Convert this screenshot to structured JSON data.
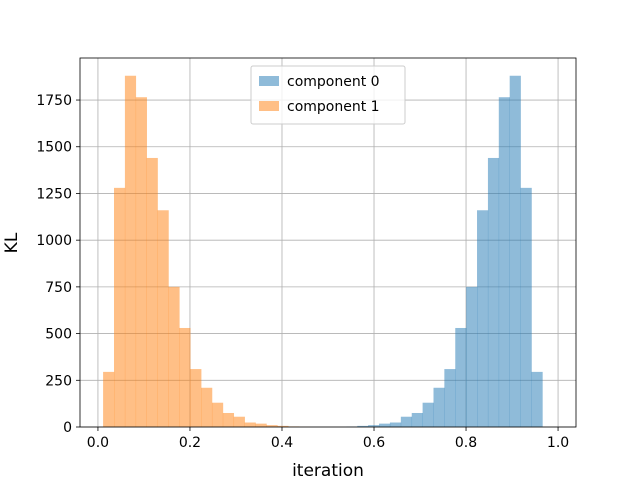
{
  "chart_data": {
    "type": "histogram",
    "xlabel": "iteration",
    "ylabel": "KL",
    "xlim": [
      -0.039,
      1.039
    ],
    "ylim": [
      0,
      1975
    ],
    "xticks": [
      0.0,
      0.2,
      0.4,
      0.6,
      0.8,
      1.0
    ],
    "xtick_labels": [
      "0.0",
      "0.2",
      "0.4",
      "0.6",
      "0.8",
      "1.0"
    ],
    "yticks": [
      0,
      250,
      500,
      750,
      1000,
      1250,
      1500,
      1750
    ],
    "ytick_labels": [
      "0",
      "250",
      "500",
      "750",
      "1000",
      "1250",
      "1500",
      "1750"
    ],
    "grid": true,
    "legend_position": "top-center",
    "series": [
      {
        "name": "component 0",
        "color": "#1f77b4",
        "alpha": 0.5,
        "bins": [
          {
            "x0": 0.54,
            "x1": 0.5637,
            "y": 2
          },
          {
            "x0": 0.5637,
            "x1": 0.5873,
            "y": 6
          },
          {
            "x0": 0.5873,
            "x1": 0.611,
            "y": 10
          },
          {
            "x0": 0.611,
            "x1": 0.6346,
            "y": 18
          },
          {
            "x0": 0.6346,
            "x1": 0.6583,
            "y": 24
          },
          {
            "x0": 0.6583,
            "x1": 0.682,
            "y": 55
          },
          {
            "x0": 0.682,
            "x1": 0.7056,
            "y": 75
          },
          {
            "x0": 0.7056,
            "x1": 0.7293,
            "y": 130
          },
          {
            "x0": 0.7293,
            "x1": 0.7529,
            "y": 210
          },
          {
            "x0": 0.7529,
            "x1": 0.7766,
            "y": 310
          },
          {
            "x0": 0.7766,
            "x1": 0.8002,
            "y": 530
          },
          {
            "x0": 0.8002,
            "x1": 0.8239,
            "y": 750
          },
          {
            "x0": 0.8239,
            "x1": 0.8476,
            "y": 1160
          },
          {
            "x0": 0.8476,
            "x1": 0.8712,
            "y": 1440
          },
          {
            "x0": 0.8712,
            "x1": 0.8949,
            "y": 1765
          },
          {
            "x0": 0.8949,
            "x1": 0.9185,
            "y": 1880
          },
          {
            "x0": 0.9185,
            "x1": 0.9422,
            "y": 1280
          },
          {
            "x0": 0.9422,
            "x1": 0.9659,
            "y": 295
          }
        ]
      },
      {
        "name": "component 1",
        "color": "#ff7f0e",
        "alpha": 0.5,
        "bins": [
          {
            "x0": 0.0112,
            "x1": 0.0349,
            "y": 295
          },
          {
            "x0": 0.0349,
            "x1": 0.0586,
            "y": 1280
          },
          {
            "x0": 0.0586,
            "x1": 0.0822,
            "y": 1880
          },
          {
            "x0": 0.0822,
            "x1": 0.1059,
            "y": 1765
          },
          {
            "x0": 0.1059,
            "x1": 0.1295,
            "y": 1440
          },
          {
            "x0": 0.1295,
            "x1": 0.1532,
            "y": 1160
          },
          {
            "x0": 0.1532,
            "x1": 0.1768,
            "y": 750
          },
          {
            "x0": 0.1768,
            "x1": 0.2005,
            "y": 530
          },
          {
            "x0": 0.2005,
            "x1": 0.2242,
            "y": 310
          },
          {
            "x0": 0.2242,
            "x1": 0.2478,
            "y": 210
          },
          {
            "x0": 0.2478,
            "x1": 0.2715,
            "y": 130
          },
          {
            "x0": 0.2715,
            "x1": 0.2951,
            "y": 75
          },
          {
            "x0": 0.2951,
            "x1": 0.3188,
            "y": 55
          },
          {
            "x0": 0.3188,
            "x1": 0.3424,
            "y": 24
          },
          {
            "x0": 0.3424,
            "x1": 0.3661,
            "y": 18
          },
          {
            "x0": 0.3661,
            "x1": 0.3898,
            "y": 10
          },
          {
            "x0": 0.3898,
            "x1": 0.4134,
            "y": 6
          },
          {
            "x0": 0.4134,
            "x1": 0.4371,
            "y": 3
          },
          {
            "x0": 0.4371,
            "x1": 0.4607,
            "y": 1
          }
        ]
      }
    ]
  }
}
